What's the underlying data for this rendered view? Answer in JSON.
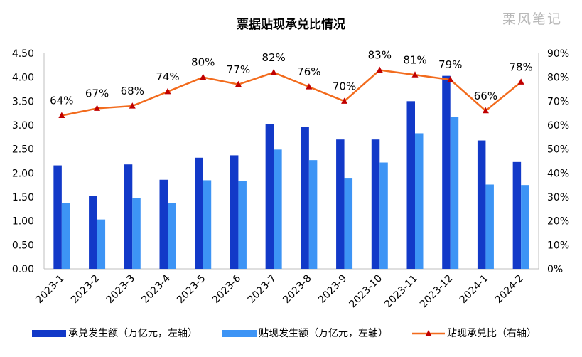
{
  "watermark": "栗风笔记",
  "colors": {
    "issued": "#1239C8",
    "discount": "#3D94F5",
    "ratio": "#F26B1D",
    "marker": "#C00000"
  },
  "chart_data": {
    "type": "bar",
    "title": "票据贴现承兑比情况",
    "categories": [
      "2023-1",
      "2023-2",
      "2023-3",
      "2023-4",
      "2023-5",
      "2023-6",
      "2023-7",
      "2023-8",
      "2023-9",
      "2023-10",
      "2023-11",
      "2023-12",
      "2024-1",
      "2024-2"
    ],
    "series": [
      {
        "name": "承兑发生额（万亿元，左轴）",
        "type": "bar",
        "axis": "left",
        "values": [
          2.16,
          1.52,
          2.18,
          1.86,
          2.32,
          2.37,
          3.02,
          2.97,
          2.7,
          2.7,
          3.5,
          4.03,
          2.68,
          2.23
        ]
      },
      {
        "name": "贴现发生额（万亿元，左轴）",
        "type": "bar",
        "axis": "left",
        "values": [
          1.38,
          1.03,
          1.48,
          1.38,
          1.85,
          1.84,
          2.49,
          2.27,
          1.9,
          2.22,
          2.83,
          3.17,
          1.76,
          1.75
        ]
      },
      {
        "name": "贴现承兑比（右轴）",
        "type": "line",
        "axis": "right",
        "values": [
          64,
          67,
          68,
          74,
          80,
          77,
          82,
          76,
          70,
          83,
          81,
          79,
          66,
          78
        ],
        "labels": [
          "64%",
          "67%",
          "68%",
          "74%",
          "80%",
          "77%",
          "82%",
          "76%",
          "70%",
          "83%",
          "81%",
          "79%",
          "66%",
          "78%"
        ]
      }
    ],
    "y_left": {
      "min": 0,
      "max": 4.5,
      "ticks": [
        "0.00",
        "0.50",
        "1.00",
        "1.50",
        "2.00",
        "2.50",
        "3.00",
        "3.50",
        "4.00",
        "4.50"
      ]
    },
    "y_right": {
      "min": 0,
      "max": 90,
      "ticks": [
        "0%",
        "10%",
        "20%",
        "30%",
        "40%",
        "50%",
        "60%",
        "70%",
        "80%",
        "90%"
      ]
    },
    "grid": false,
    "legend_position": "bottom"
  }
}
